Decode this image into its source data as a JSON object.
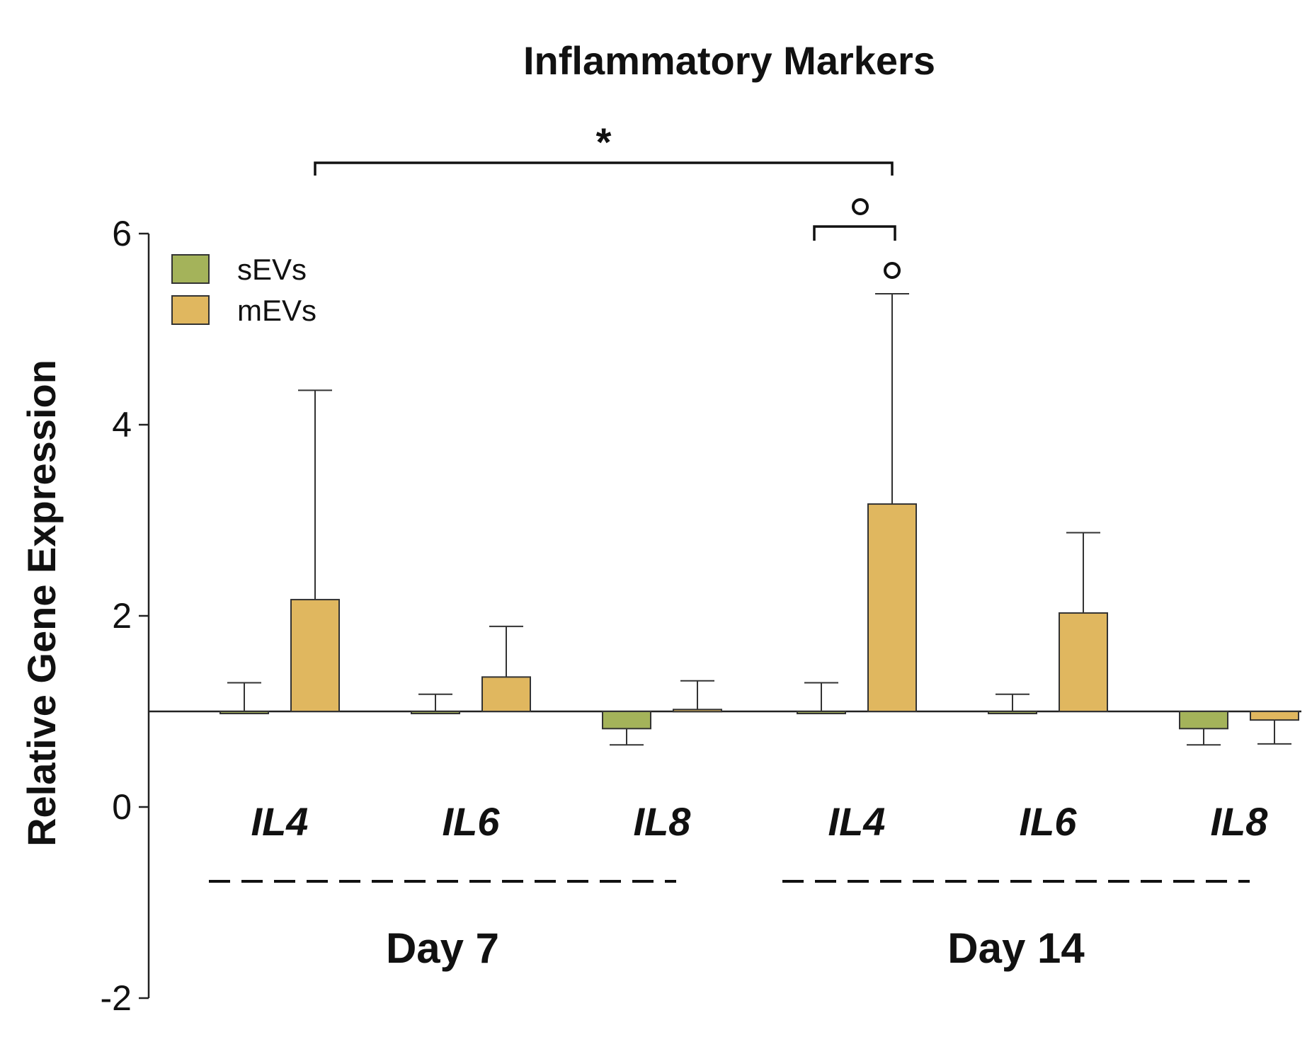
{
  "chart_data": {
    "type": "bar",
    "title": "Inflammatory Markers",
    "ylabel": "Relative Gene Expression",
    "xlabel": "",
    "ylim": [
      -2,
      6
    ],
    "yticks": [
      "-2",
      "0",
      "2",
      "4",
      "6"
    ],
    "baseline": 1,
    "categories": [
      "IL4",
      "IL6",
      "IL8",
      "IL4",
      "IL6",
      "IL8"
    ],
    "groups": [
      {
        "label": "Day 7",
        "categories": [
          "IL4",
          "IL6",
          "IL8"
        ]
      },
      {
        "label": "Day 14",
        "categories": [
          "IL4",
          "IL6",
          "IL8"
        ]
      }
    ],
    "series": [
      {
        "name": "sEVs",
        "color": "#a4b35a",
        "values": [
          1.0,
          1.0,
          0.82,
          1.0,
          1.0,
          0.82
        ],
        "errors": [
          0.3,
          0.18,
          0.17,
          0.3,
          0.18,
          0.17
        ]
      },
      {
        "name": "mEVs",
        "color": "#e0b75f",
        "values": [
          2.17,
          1.36,
          1.02,
          3.17,
          2.03,
          0.91
        ],
        "errors": [
          2.19,
          0.53,
          0.3,
          2.2,
          0.84,
          0.25
        ]
      }
    ],
    "legend": {
      "position": "top-left",
      "entries": [
        "sEVs",
        "mEVs"
      ]
    },
    "annotations": [
      {
        "type": "bracket",
        "label": "*",
        "from_category": 0,
        "to_category": 3,
        "series": "mEVs"
      },
      {
        "type": "bracket",
        "label": "°",
        "from_category": 3,
        "to_category": 3,
        "series": [
          "sEVs",
          "mEVs"
        ]
      },
      {
        "type": "marker",
        "label": "°",
        "category": 3,
        "series": "mEVs"
      }
    ]
  }
}
